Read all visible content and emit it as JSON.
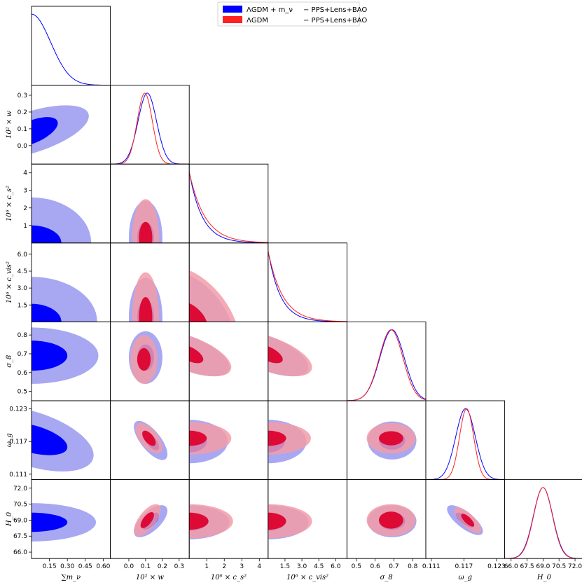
{
  "chart_data": {
    "type": "corner",
    "legend": {
      "position": "top-center",
      "entries": [
        {
          "model": "ΛGDM + m_ν",
          "dataset": "− PPS+Lens+BAO",
          "color": "#0000ff"
        },
        {
          "model": "ΛGDM",
          "dataset": "− PPS+Lens+BAO",
          "color": "#ff2020"
        }
      ]
    },
    "series": [
      {
        "name": "ΛGDM + m_ν − PPS+Lens+BAO",
        "color": "#0000ff",
        "fill_inner": "#0000ff",
        "fill_outer": "#9999f0"
      },
      {
        "name": "ΛGDM − PPS+Lens+BAO",
        "color": "#ff2020",
        "fill_inner": "#dd0a35",
        "fill_outer": "#f29ca8"
      }
    ],
    "parameters": [
      {
        "name": "sum_mnu",
        "label": "∑m_ν",
        "range": [
          0,
          0.66
        ],
        "ticks": [
          0.15,
          0.3,
          0.45,
          0.6
        ],
        "tick_labels": [
          "0.15",
          "0.30",
          "0.45",
          "0.60"
        ]
      },
      {
        "name": "w",
        "label": "10² × w",
        "range": [
          -0.11,
          0.36
        ],
        "ticks": [
          0.0,
          0.1,
          0.2,
          0.3
        ],
        "tick_labels": [
          "0.0",
          "0.1",
          "0.2",
          "0.3"
        ]
      },
      {
        "name": "cs2",
        "label": "10⁶ × c_s²",
        "range": [
          0,
          4.5
        ],
        "ticks": [
          1,
          2,
          3,
          4
        ],
        "tick_labels": [
          "1",
          "2",
          "3",
          "4"
        ]
      },
      {
        "name": "cvis2",
        "label": "10⁶ × c_vis²",
        "range": [
          0,
          7.0
        ],
        "ticks": [
          1.5,
          3.0,
          4.5,
          6.0
        ],
        "tick_labels": [
          "1.5",
          "3.0",
          "4.5",
          "6.0"
        ]
      },
      {
        "name": "sigma8",
        "label": "σ_8",
        "range": [
          0.45,
          0.87
        ],
        "ticks": [
          0.5,
          0.6,
          0.7,
          0.8
        ],
        "tick_labels": [
          "0.5",
          "0.6",
          "0.7",
          "0.8"
        ]
      },
      {
        "name": "omega_g",
        "label": "ω_g",
        "range": [
          0.11,
          0.1245
        ],
        "ticks": [
          0.111,
          0.117,
          0.123
        ],
        "tick_labels": [
          "0.111",
          "0.117",
          "0.123"
        ]
      },
      {
        "name": "H0",
        "label": "H_0",
        "range": [
          65.4,
          72.8
        ],
        "ticks": [
          66.0,
          67.5,
          69.0,
          70.5,
          72.0
        ],
        "tick_labels": [
          "66.0",
          "67.5",
          "69.0",
          "70.5",
          "72.0"
        ]
      }
    ],
    "posteriors_1d": {
      "sum_mnu": [
        {
          "series": 0,
          "shape": "half-gaussian",
          "peak": 0.0,
          "sigma": 0.16
        }
      ],
      "w": [
        {
          "series": 0,
          "mean": 0.11,
          "sigma": 0.055
        },
        {
          "series": 1,
          "mean": 0.095,
          "sigma": 0.045
        }
      ],
      "cs2": [
        {
          "series": 0,
          "shape": "exponential",
          "scale": 0.75
        },
        {
          "series": 1,
          "shape": "exponential",
          "scale": 0.9
        }
      ],
      "cvis2": [
        {
          "series": 0,
          "shape": "exponential",
          "scale": 1.1
        },
        {
          "series": 1,
          "shape": "exponential",
          "scale": 1.3
        }
      ],
      "sigma8": [
        {
          "series": 0,
          "mean": 0.69,
          "sigma": 0.065
        },
        {
          "series": 1,
          "mean": 0.685,
          "sigma": 0.063
        }
      ],
      "omega_g": [
        {
          "series": 0,
          "mean": 0.1173,
          "sigma": 0.0018
        },
        {
          "series": 1,
          "mean": 0.1175,
          "sigma": 0.0013
        }
      ],
      "H0": [
        {
          "series": 0,
          "mean": 69.0,
          "sigma": 0.9
        },
        {
          "series": 1,
          "mean": 69.0,
          "sigma": 0.88
        }
      ]
    },
    "contours_2d": [
      {
        "x": "sum_mnu",
        "y": "w",
        "series": 0,
        "center": [
          0.0,
          0.08
        ],
        "halfwidths_68": [
          0.22,
          0.09
        ],
        "halfwidths_95": [
          0.48,
          0.16
        ],
        "tilt": 0.6
      },
      {
        "x": "sum_mnu",
        "y": "cs2",
        "series": 0,
        "center": [
          0.0,
          0.0
        ],
        "halfwidths_68": [
          0.25,
          1.0
        ],
        "halfwidths_95": [
          0.5,
          2.6
        ]
      },
      {
        "x": "sum_mnu",
        "y": "cvis2",
        "series": 0,
        "center": [
          0.0,
          0.0
        ],
        "halfwidths_68": [
          0.25,
          1.6
        ],
        "halfwidths_95": [
          0.55,
          4.0
        ]
      },
      {
        "x": "sum_mnu",
        "y": "sigma8",
        "series": 0,
        "center": [
          0.0,
          0.69
        ],
        "halfwidths_68": [
          0.3,
          0.08
        ],
        "halfwidths_95": [
          0.56,
          0.15
        ]
      },
      {
        "x": "sum_mnu",
        "y": "omega_g",
        "series": 0,
        "center": [
          0.0,
          0.1175
        ],
        "halfwidths_68": [
          0.3,
          0.003
        ],
        "halfwidths_95": [
          0.52,
          0.006
        ],
        "tilt": -0.5
      },
      {
        "x": "sum_mnu",
        "y": "H0",
        "series": 0,
        "center": [
          0.0,
          68.8
        ],
        "halfwidths_68": [
          0.3,
          0.9
        ],
        "halfwidths_95": [
          0.54,
          1.8
        ]
      }
    ]
  }
}
